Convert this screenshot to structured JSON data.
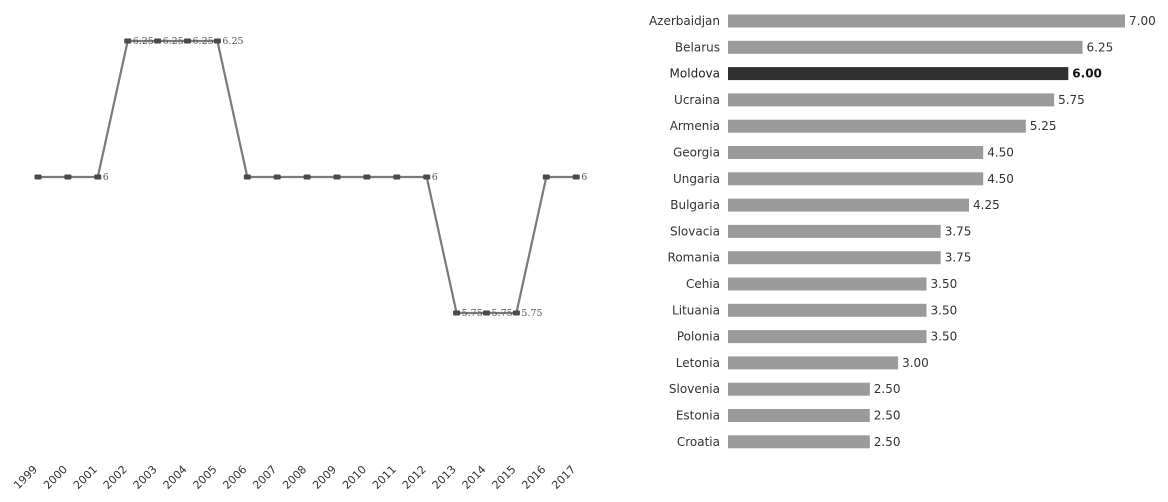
{
  "chart_data": [
    {
      "type": "line",
      "x": [
        "1999",
        "2000",
        "2001",
        "2002",
        "2003",
        "2004",
        "2005",
        "2006",
        "2007",
        "2008",
        "2009",
        "2010",
        "2011",
        "2012",
        "2013",
        "2014",
        "2015",
        "2016",
        "2017"
      ],
      "series": [
        {
          "values": [
            6,
            6,
            6,
            6.25,
            6.25,
            6.25,
            6.25,
            6,
            6,
            6,
            6,
            6,
            6,
            6,
            5.75,
            5.75,
            5.75,
            6,
            6
          ]
        }
      ],
      "point_labels": [
        {
          "index": 2,
          "text": "6"
        },
        {
          "index": 3,
          "text": "6.25"
        },
        {
          "index": 4,
          "text": "6.25"
        },
        {
          "index": 5,
          "text": "6.25"
        },
        {
          "index": 6,
          "text": "6.25"
        },
        {
          "index": 13,
          "text": "6"
        },
        {
          "index": 14,
          "text": "5.75"
        },
        {
          "index": 15,
          "text": "5.75"
        },
        {
          "index": 16,
          "text": "5.75"
        },
        {
          "index": 18,
          "text": "6"
        }
      ],
      "ylim": [
        5.5,
        6.5
      ],
      "grid": false,
      "colors": {
        "line": "#7a7a7a",
        "marker": "#4a4a4a"
      }
    },
    {
      "type": "bar",
      "orientation": "horizontal",
      "categories": [
        "Azerbaidjan",
        "Belarus",
        "Moldova",
        "Ucraina",
        "Armenia",
        "Georgia",
        "Ungaria",
        "Bulgaria",
        "Slovacia",
        "Romania",
        "Cehia",
        "Lituania",
        "Polonia",
        "Letonia",
        "Slovenia",
        "Estonia",
        "Croatia"
      ],
      "values": [
        7.0,
        6.25,
        6.0,
        5.75,
        5.25,
        4.5,
        4.5,
        4.25,
        3.75,
        3.75,
        3.5,
        3.5,
        3.5,
        3.0,
        2.5,
        2.5,
        2.5
      ],
      "value_labels": [
        "7.00",
        "6.25",
        "6.00",
        "5.75",
        "5.25",
        "4.50",
        "4.50",
        "4.25",
        "3.75",
        "3.75",
        "3.50",
        "3.50",
        "3.50",
        "3.00",
        "2.50",
        "2.50",
        "2.50"
      ],
      "highlight": "Moldova",
      "xlim": [
        0,
        7
      ],
      "grid": false,
      "colors": {
        "bar": "#9a9a9a",
        "highlight": "#2f2f2f"
      }
    }
  ]
}
